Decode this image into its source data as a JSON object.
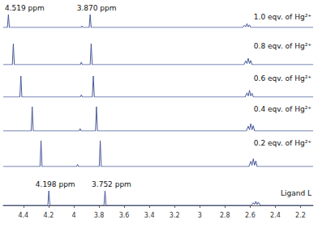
{
  "chart_data": {
    "type": "line",
    "xlim": [
      4.56,
      2.1
    ],
    "xticks": [
      4.4,
      4.2,
      4.0,
      3.8,
      3.6,
      3.4,
      3.2,
      3.0,
      2.8,
      2.6,
      2.4,
      2.2
    ],
    "ylim": [
      0,
      1
    ],
    "tick_labels": "x",
    "grid": false,
    "series": [
      {
        "name": "1.0 eqv. of Hg²⁺",
        "color": "#4a5a9a",
        "x": [
          4.56,
          4.527,
          4.519,
          4.511,
          3.943,
          3.935,
          3.927,
          3.878,
          3.87,
          3.862,
          2.66,
          2.645,
          2.635,
          2.625,
          2.615,
          2.605,
          2.595,
          2.1
        ],
        "values": [
          0,
          0,
          1,
          0,
          0,
          0.12,
          0,
          0,
          1,
          0,
          0,
          0.18,
          0.05,
          0.3,
          0.05,
          0.2,
          0,
          0
        ],
        "annotations": [
          {
            "text": "4.519 ppm",
            "x": 4.519
          },
          {
            "text": "3.870 ppm",
            "x": 3.87
          }
        ]
      },
      {
        "name": "0.8 eqv. of Hg²⁺",
        "color": "#4a5a9a",
        "x": [
          4.56,
          4.488,
          4.48,
          4.472,
          3.948,
          3.94,
          3.932,
          3.87,
          3.862,
          3.854,
          2.65,
          2.635,
          2.625,
          2.615,
          2.605,
          2.595,
          2.585,
          2.1
        ],
        "values": [
          0,
          0,
          1,
          0,
          0,
          0.12,
          0,
          0,
          1,
          0,
          0,
          0.18,
          0.05,
          0.3,
          0.05,
          0.2,
          0,
          0
        ]
      },
      {
        "name": "0.6 eqv. of Hg²⁺",
        "color": "#4a5a9a",
        "x": [
          4.56,
          4.428,
          4.42,
          4.412,
          3.948,
          3.94,
          3.932,
          3.853,
          3.845,
          3.837,
          2.64,
          2.625,
          2.615,
          2.605,
          2.595,
          2.585,
          2.575,
          2.1
        ],
        "values": [
          0,
          0,
          1,
          0,
          0,
          0.1,
          0,
          0,
          1,
          0,
          0,
          0.2,
          0.05,
          0.32,
          0.05,
          0.18,
          0,
          0
        ]
      },
      {
        "name": "0.4 eqv. of Hg²⁺",
        "color": "#4a5a9a",
        "x": [
          4.56,
          4.338,
          4.33,
          4.322,
          3.958,
          3.95,
          3.942,
          3.828,
          3.82,
          3.812,
          2.63,
          2.615,
          2.605,
          2.595,
          2.585,
          2.575,
          2.565,
          2.1
        ],
        "values": [
          0,
          0,
          1,
          0,
          0,
          0.1,
          0,
          0,
          1,
          0,
          0,
          0.2,
          0.05,
          0.3,
          0.05,
          0.22,
          0,
          0
        ]
      },
      {
        "name": "0.2 eqv. of Hg²⁺",
        "color": "#4a5a9a",
        "x": [
          4.56,
          4.268,
          4.26,
          4.252,
          3.978,
          3.97,
          3.962,
          3.798,
          3.79,
          3.782,
          2.61,
          2.595,
          2.585,
          2.575,
          2.565,
          2.555,
          2.545,
          2.1
        ],
        "values": [
          0,
          0,
          1,
          0,
          0,
          0.08,
          0,
          0,
          1,
          0,
          0,
          0.2,
          0.05,
          0.3,
          0.05,
          0.22,
          0,
          0
        ]
      },
      {
        "name": "Ligand L",
        "color": "#4a5a9a",
        "x": [
          4.56,
          4.206,
          4.198,
          4.19,
          3.76,
          3.752,
          3.744,
          2.59,
          2.575,
          2.565,
          2.555,
          2.545,
          2.535,
          2.52,
          2.1
        ],
        "values": [
          0,
          0,
          1,
          0,
          0,
          1,
          0,
          0,
          0.18,
          0.05,
          0.28,
          0.05,
          0.22,
          0,
          0
        ],
        "annotations": [
          {
            "text": "4.198 ppm",
            "x": 4.198
          },
          {
            "text": "3.752 ppm",
            "x": 3.752
          }
        ]
      }
    ]
  }
}
